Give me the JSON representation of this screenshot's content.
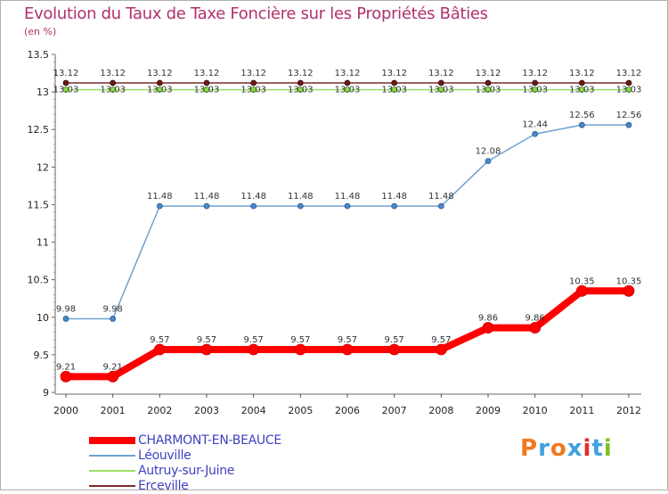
{
  "chart_data": {
    "type": "line",
    "title": "Evolution du Taux de Taxe Foncière sur les Propriétés Bâties",
    "subtitle": "(en %)",
    "x": [
      "2000",
      "2001",
      "2002",
      "2003",
      "2004",
      "2005",
      "2006",
      "2007",
      "2008",
      "2009",
      "2010",
      "2011",
      "2012"
    ],
    "ylim": [
      9,
      13.5
    ],
    "yticks": [
      "9",
      "9.5",
      "10",
      "10.5",
      "11",
      "11.5",
      "12",
      "12.5",
      "13",
      "13.5"
    ],
    "grid": false,
    "legend_position": "bottom-left",
    "series": [
      {
        "name": "CHARMONT-EN-BEAUCE",
        "color": "#ff0000",
        "values": [
          9.21,
          9.21,
          9.57,
          9.57,
          9.57,
          9.57,
          9.57,
          9.57,
          9.57,
          9.86,
          9.86,
          10.35,
          10.35
        ],
        "labels": [
          "9.21",
          "9.21",
          "9.57",
          "9.57",
          "9.57",
          "9.57",
          "9.57",
          "9.57",
          "9.57",
          "9.86",
          "9.86",
          "10.35",
          "10.35"
        ]
      },
      {
        "name": "Léouville",
        "color": "#6fa0d0",
        "values": [
          9.98,
          9.98,
          11.48,
          11.48,
          11.48,
          11.48,
          11.48,
          11.48,
          11.48,
          12.08,
          12.44,
          12.56,
          12.56
        ],
        "labels": [
          "9.98",
          "9.98",
          "11.48",
          "11.48",
          "11.48",
          "11.48",
          "11.48",
          "11.48",
          "11.48",
          "12.08",
          "12.44",
          "12.56",
          "12.56"
        ]
      },
      {
        "name": "Autruy-sur-Juine",
        "color": "#99dd66",
        "values": [
          13.03,
          13.03,
          13.03,
          13.03,
          13.03,
          13.03,
          13.03,
          13.03,
          13.03,
          13.03,
          13.03,
          13.03,
          13.03
        ],
        "labels": [
          "13.03",
          "13.03",
          "13.03",
          "13.03",
          "13.03",
          "13.03",
          "13.03",
          "13.03",
          "13.03",
          "13.03",
          "13.03",
          "13.03",
          "13.03"
        ]
      },
      {
        "name": "Erceville",
        "color": "#7a2a2a",
        "values": [
          13.12,
          13.12,
          13.12,
          13.12,
          13.12,
          13.12,
          13.12,
          13.12,
          13.12,
          13.12,
          13.12,
          13.12,
          13.12
        ],
        "labels": [
          "13.12",
          "13.12",
          "13.12",
          "13.12",
          "13.12",
          "13.12",
          "13.12",
          "13.12",
          "13.12",
          "13.12",
          "13.12",
          "13.12",
          "13.12"
        ]
      }
    ]
  },
  "brand": {
    "letters": [
      "P",
      "r",
      "o",
      "x",
      "i",
      "t",
      "i"
    ],
    "colors": [
      "#f07820",
      "#40a0e0",
      "#f07820",
      "#40a0e0",
      "#e03030",
      "#40a0e0",
      "#80c020"
    ]
  }
}
